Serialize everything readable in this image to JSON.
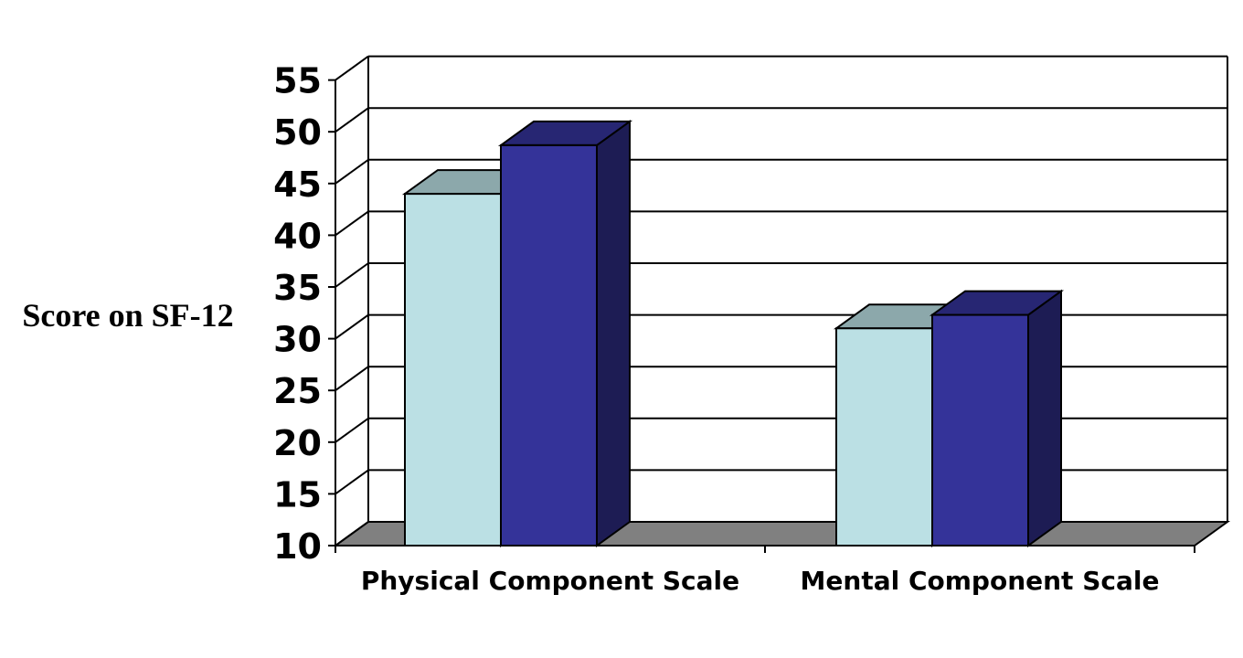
{
  "chart_data": {
    "type": "bar",
    "style": "3d-clustered",
    "categories": [
      "Physical Component Scale",
      "Mental Component Scale"
    ],
    "series": [
      {
        "values": [
          44,
          31
        ],
        "color": "#bbe0e4"
      },
      {
        "values": [
          48.7,
          32.3
        ],
        "color": "#343399"
      }
    ],
    "ylabel": "Score on SF-12",
    "xlabel": "",
    "ylim": [
      10,
      55
    ],
    "yticks": [
      10,
      15,
      20,
      25,
      30,
      35,
      40,
      45,
      50,
      55
    ],
    "grid": true,
    "legend": "none",
    "colors": {
      "floor": "#808080",
      "gridline": "#000000"
    }
  }
}
